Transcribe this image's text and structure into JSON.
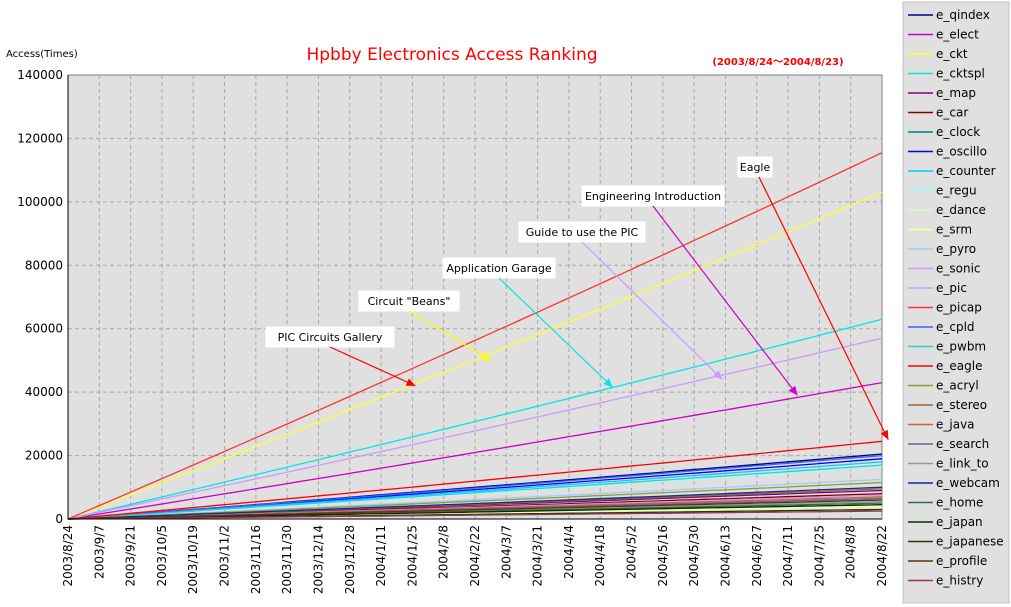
{
  "chart_data": {
    "type": "line",
    "title": "Hpbby Electronics Access Ranking",
    "subtitle": "(2003/8/24～2004/8/23)",
    "ylabel": "Access(Times)",
    "xlabel": "",
    "ylim": [
      0,
      140000
    ],
    "yticks": [
      "0",
      "20000",
      "40000",
      "60000",
      "80000",
      "100000",
      "120000",
      "140000"
    ],
    "x_tick_labels": [
      "2003/8/24",
      "2003/9/7",
      "2003/9/21",
      "2003/10/5",
      "2003/10/19",
      "2003/11/2",
      "2003/11/16",
      "2003/11/30",
      "2003/12/14",
      "2003/12/28",
      "2004/1/11",
      "2004/1/25",
      "2004/2/8",
      "2004/2/22",
      "2004/3/7",
      "2004/3/21",
      "2004/4/4",
      "2004/4/18",
      "2004/5/2",
      "2004/5/16",
      "2004/5/30",
      "2004/6/13",
      "2004/6/27",
      "2004/7/11",
      "2004/7/25",
      "2004/8/8",
      "2004/8/22"
    ],
    "grid": true,
    "legend_position": "right",
    "background": "#e0e0e0",
    "series": [
      {
        "name": "e_qindex",
        "color": "#000080",
        "final": 20500
      },
      {
        "name": "e_elect",
        "color": "#cc00cc",
        "final": 43000
      },
      {
        "name": "e_ckt",
        "color": "#ffff33",
        "final": 103000
      },
      {
        "name": "e_cktspl",
        "color": "#00e5e5",
        "final": 63000
      },
      {
        "name": "e_map",
        "color": "#800080",
        "final": 9000
      },
      {
        "name": "e_car",
        "color": "#800000",
        "final": 8000
      },
      {
        "name": "e_clock",
        "color": "#008080",
        "final": 6000
      },
      {
        "name": "e_oscillo",
        "color": "#0000ff",
        "final": 19000
      },
      {
        "name": "e_counter",
        "color": "#00ccff",
        "final": 18000
      },
      {
        "name": "e_regu",
        "color": "#99ffff",
        "final": 16500
      },
      {
        "name": "e_dance",
        "color": "#ccffcc",
        "final": 3500
      },
      {
        "name": "e_srm",
        "color": "#ffff99",
        "final": 4000
      },
      {
        "name": "e_pyro",
        "color": "#99ccff",
        "final": 12500
      },
      {
        "name": "e_sonic",
        "color": "#cc99ff",
        "final": 7500
      },
      {
        "name": "e_pic",
        "color": "#cc99ff",
        "final": 57000
      },
      {
        "name": "e_picap",
        "color": "#ff3333",
        "final": 115500
      },
      {
        "name": "e_cpld",
        "color": "#3366ff",
        "final": 20000
      },
      {
        "name": "e_pwbm",
        "color": "#33cccc",
        "final": 17000
      },
      {
        "name": "e_eagle",
        "color": "#ff0000",
        "final": 24500
      },
      {
        "name": "e_acryl",
        "color": "#999933",
        "final": 11500
      },
      {
        "name": "e_stereo",
        "color": "#996633",
        "final": 9500
      },
      {
        "name": "e_java",
        "color": "#cc6633",
        "final": 7000
      },
      {
        "name": "e_search",
        "color": "#666699",
        "final": 6500
      },
      {
        "name": "e_link_to",
        "color": "#999999",
        "final": 5500
      },
      {
        "name": "e_webcam",
        "color": "#003399",
        "final": 10000
      },
      {
        "name": "e_home",
        "color": "#336666",
        "final": 5000
      },
      {
        "name": "e_japan",
        "color": "#003300",
        "final": 4500
      },
      {
        "name": "e_japanese",
        "color": "#333300",
        "final": 3000
      },
      {
        "name": "e_profile",
        "color": "#663300",
        "final": 6000
      },
      {
        "name": "e_histry",
        "color": "#993366",
        "final": 2500
      }
    ],
    "annotations": [
      {
        "text": "PIC Circuits Gallery",
        "color": "#ff0000",
        "target_x_index": 11.1,
        "target_y": 42000
      },
      {
        "text": "Circuit \"Beans\"",
        "color": "#ffff00",
        "target_x_index": 13.5,
        "target_y": 50000
      },
      {
        "text": "Application Garage",
        "color": "#00e5e5",
        "target_x_index": 17.4,
        "target_y": 41500
      },
      {
        "text": "Guide to use the PIC",
        "color": "#cc99ff",
        "target_x_index": 20.9,
        "target_y": 44000
      },
      {
        "text": "Engineering Introduction",
        "color": "#cc00cc",
        "target_x_index": 23.3,
        "target_y": 39000
      },
      {
        "text": "Eagle",
        "color": "#ff0000",
        "target_x_index": 26.2,
        "target_y": 25000
      }
    ]
  }
}
